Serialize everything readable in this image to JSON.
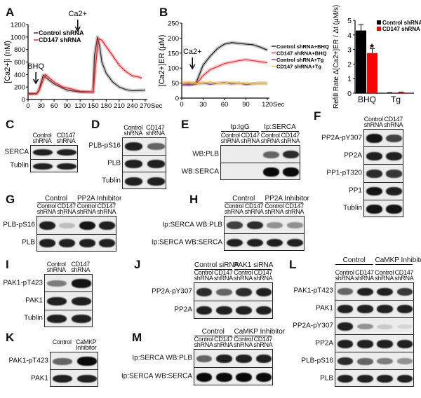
{
  "chart_data": [
    {
      "panel": "A",
      "type": "line",
      "ylabel": "[Ca2+]i (nM)",
      "xunit": "Sec",
      "xlim": [
        0,
        270
      ],
      "ylim": [
        0,
        1200
      ],
      "xticks": [
        0,
        30,
        60,
        90,
        120,
        150,
        180,
        210,
        240,
        270
      ],
      "yticks": [
        0,
        200,
        400,
        600,
        800,
        1000,
        1200
      ],
      "annotations": [
        {
          "text": "BHQ",
          "x": 18
        },
        {
          "text": "Ca2+",
          "x": 150
        }
      ],
      "legend": "top-left",
      "series": [
        {
          "name": "Control shRNA",
          "color": "#333333",
          "x": [
            0,
            20,
            25,
            35,
            45,
            60,
            90,
            120,
            150,
            153,
            160,
            165,
            170,
            180,
            195,
            210,
            225,
            240,
            255,
            270
          ],
          "y": [
            95,
            95,
            150,
            390,
            330,
            250,
            150,
            120,
            120,
            700,
            1000,
            850,
            600,
            420,
            280,
            200,
            160,
            140,
            145,
            150
          ]
        },
        {
          "name": "CD147 shRNA",
          "color": "#e8262b",
          "x": [
            0,
            20,
            25,
            40,
            50,
            60,
            80,
            100,
            120,
            150,
            155,
            162,
            170,
            180,
            195,
            210,
            225,
            240,
            255,
            262
          ],
          "y": [
            85,
            90,
            140,
            400,
            340,
            280,
            200,
            170,
            130,
            120,
            500,
            970,
            950,
            850,
            700,
            550,
            450,
            380,
            360,
            340
          ]
        }
      ]
    },
    {
      "panel": "B",
      "type": "line",
      "ylabel": "[Ca2+]ER (μM)",
      "xunit": "Sec",
      "xlim": [
        0,
        120
      ],
      "ylim": [
        0,
        250
      ],
      "xticks": [
        0,
        30,
        60,
        90,
        120
      ],
      "yticks": [
        0,
        50,
        100,
        150,
        200,
        250
      ],
      "annotations": [
        {
          "text": "Ca2+",
          "x": 15
        }
      ],
      "legend": "right",
      "series": [
        {
          "name": "Control shRNA+BHQ",
          "color": "#222222",
          "x": [
            0,
            15,
            20,
            25,
            30,
            40,
            50,
            60,
            70,
            90,
            100,
            110,
            120
          ],
          "y": [
            45,
            45,
            50,
            80,
            110,
            140,
            165,
            180,
            185,
            180,
            178,
            170,
            160
          ]
        },
        {
          "name": "CD147 shRNA+BHQ",
          "color": "#f0303a",
          "x": [
            0,
            20,
            25,
            30,
            40,
            60,
            80,
            90,
            100,
            120
          ],
          "y": [
            50,
            50,
            60,
            75,
            95,
            115,
            125,
            128,
            125,
            118
          ]
        },
        {
          "name": "Control shRNA+Tg",
          "color": "#7a3fb0",
          "x": [
            0,
            10,
            20,
            30,
            40,
            50,
            60,
            70,
            80,
            90,
            100,
            110,
            120
          ],
          "y": [
            46,
            44,
            47,
            50,
            46,
            49,
            52,
            47,
            50,
            45,
            48,
            50,
            49
          ]
        },
        {
          "name": "CD147 shRNA+Tg",
          "color": "#e8c21a",
          "x": [
            0,
            10,
            20,
            30,
            40,
            50,
            60,
            70,
            80,
            90,
            100,
            110,
            120
          ],
          "y": [
            50,
            53,
            48,
            51,
            54,
            49,
            50,
            53,
            48,
            51,
            47,
            50,
            48
          ]
        }
      ]
    },
    {
      "type": "bar",
      "ylabel": "Refill Rate Δ[Ca2+]ER / Δt (μM/s)",
      "categories": [
        "BHQ",
        "Tg"
      ],
      "ylim": [
        0,
        5
      ],
      "yticks": [
        0,
        1,
        2,
        3,
        4,
        5
      ],
      "legend": "top-right",
      "significance": {
        "text": "*",
        "category": "BHQ",
        "series": "CD147 shRNA"
      },
      "series": [
        {
          "name": "Control shRNA",
          "color": "#000000",
          "values": [
            4.3,
            0.02
          ],
          "errors": [
            0.4,
            0.02
          ]
        },
        {
          "name": "CD147 shRNA",
          "color": "#ff0000",
          "values": [
            2.75,
            0.05
          ],
          "errors": [
            0.3,
            0.03
          ]
        }
      ]
    }
  ],
  "panel_letters": {
    "A": "A",
    "B": "B"
  },
  "blots": [
    {
      "id": "C",
      "lanes": [
        "Control shRNA",
        "CD147 shRNA"
      ],
      "rows": [
        {
          "label": "SERCA",
          "bands": [
            0.9,
            0.9
          ]
        },
        {
          "label": "Tublin",
          "bands": [
            0.9,
            0.9
          ]
        }
      ]
    },
    {
      "id": "D",
      "lanes": [
        "Control shRNA",
        "CD147 shRNA"
      ],
      "rows": [
        {
          "label": "PLB-pS16",
          "bands": [
            0.9,
            0.6
          ]
        },
        {
          "label": "PLB",
          "bands": [
            0.9,
            0.9
          ]
        },
        {
          "label": "Tublin",
          "bands": [
            0.9,
            0.9
          ]
        }
      ]
    },
    {
      "id": "E",
      "groups": [
        "Ip:IgG",
        "Ip:SERCA"
      ],
      "lanes": [
        "Control shRNA",
        "CD147 shRNA",
        "Control shRNA",
        "CD147 shRNA"
      ],
      "rows": [
        {
          "label": "WB:PLB",
          "bands": [
            0,
            0,
            0.6,
            0.85
          ]
        },
        {
          "label": "WB:SERCA",
          "bands": [
            0,
            0,
            1,
            1
          ]
        }
      ]
    },
    {
      "id": "F",
      "lanes": [
        "Control shRNA",
        "CD147 shRNA"
      ],
      "rows": [
        {
          "label": "PP2A-pY307",
          "bands": [
            0.95,
            0.75
          ]
        },
        {
          "label": "PP2A",
          "bands": [
            0.9,
            0.9
          ]
        },
        {
          "label": "PP1-pT320",
          "bands": [
            0.85,
            0.8
          ]
        },
        {
          "label": "PP1",
          "bands": [
            0.95,
            0.9
          ]
        },
        {
          "label": "Tublin",
          "bands": [
            0.95,
            0.95
          ]
        }
      ]
    },
    {
      "id": "G",
      "groups": [
        "Control",
        "PP2A Inhibitor"
      ],
      "lanes": [
        "Control shRNA",
        "CD147 shRNA",
        "Control shRNA",
        "CD147 shRNA"
      ],
      "rows": [
        {
          "label": "PLB-pS16",
          "bands": [
            0.9,
            0.2,
            0.95,
            0.9
          ]
        },
        {
          "label": "PLB",
          "bands": [
            0.9,
            0.9,
            0.9,
            0.9
          ]
        }
      ]
    },
    {
      "id": "H",
      "groups": [
        "Control",
        "PP2A Inhibitor"
      ],
      "lanes": [
        "Control shRNA",
        "CD147 shRNA",
        "Control shRNA",
        "CD147 shRNA"
      ],
      "rows": [
        {
          "label": "Ip:SERCA WB:PLB",
          "bands": [
            0.75,
            0.85,
            0.4,
            0.4
          ]
        },
        {
          "label": "Ip:SERCA  WB:SERCA",
          "bands": [
            0.9,
            0.9,
            0.9,
            0.9
          ]
        }
      ]
    },
    {
      "id": "I",
      "lanes": [
        "Control shRNA",
        "CD147 shRNA"
      ],
      "rows": [
        {
          "label": "PAK1-pT423",
          "bands": [
            0.5,
            0.95
          ]
        },
        {
          "label": "PAK1",
          "bands": [
            0.9,
            0.9
          ]
        },
        {
          "label": "Tublin",
          "bands": [
            0.9,
            0.9
          ]
        }
      ]
    },
    {
      "id": "J",
      "groups": [
        "Control siRNA",
        "PAK1 siRNA"
      ],
      "lanes": [
        "Control shRNA",
        "CD147 shRNA",
        "Control shRNA",
        "CD147 shRNA"
      ],
      "rows": [
        {
          "label": "PP2A-pY307",
          "bands": [
            0.85,
            0.6,
            0.85,
            0.9
          ]
        },
        {
          "label": "PP2A",
          "bands": [
            0.9,
            0.9,
            0.9,
            0.9
          ]
        }
      ]
    },
    {
      "id": "K",
      "lanes": [
        "Control",
        "CaMKP Inhibitor"
      ],
      "rows": [
        {
          "label": "PAK1-pT423",
          "bands": [
            0.6,
            1
          ]
        },
        {
          "label": "PAK1",
          "bands": [
            0.9,
            0.9
          ]
        }
      ]
    },
    {
      "id": "M",
      "groups": [
        "Control",
        "CaMKP Inhibitor"
      ],
      "lanes": [
        "Control shRNA",
        "CD147 shRNA",
        "Control shRNA",
        "CD147 shRNA"
      ],
      "rows": [
        {
          "label": "Ip:SERCA WB:PLB",
          "bands": [
            0.6,
            0.9,
            0.9,
            0.9
          ]
        },
        {
          "label": "Ip:SERCA  WB:SERCA",
          "bands": [
            1,
            1,
            1,
            1
          ]
        }
      ]
    },
    {
      "id": "L",
      "groups": [
        "Control",
        "CaMKP Inhibitor"
      ],
      "lanes": [
        "Control shRNA",
        "CD147 shRNA",
        "Control shRNA",
        "CD147 shRNA"
      ],
      "rows": [
        {
          "label": "PAK1-pT423",
          "bands": [
            0.6,
            0.9,
            0.9,
            0.8
          ]
        },
        {
          "label": "PAK1",
          "bands": [
            0.9,
            0.9,
            0.9,
            0.9
          ]
        },
        {
          "label": "PP2A-pY307",
          "bands": [
            0.9,
            0.4,
            0.15,
            0.1
          ]
        },
        {
          "label": "PP2A",
          "bands": [
            0.9,
            0.9,
            0.9,
            0.9
          ]
        },
        {
          "label": "PLB-pS16",
          "bands": [
            0.85,
            0.6,
            0.5,
            0.4
          ]
        },
        {
          "label": "PLB",
          "bands": [
            0.9,
            0.9,
            0.9,
            0.9
          ]
        }
      ]
    }
  ]
}
